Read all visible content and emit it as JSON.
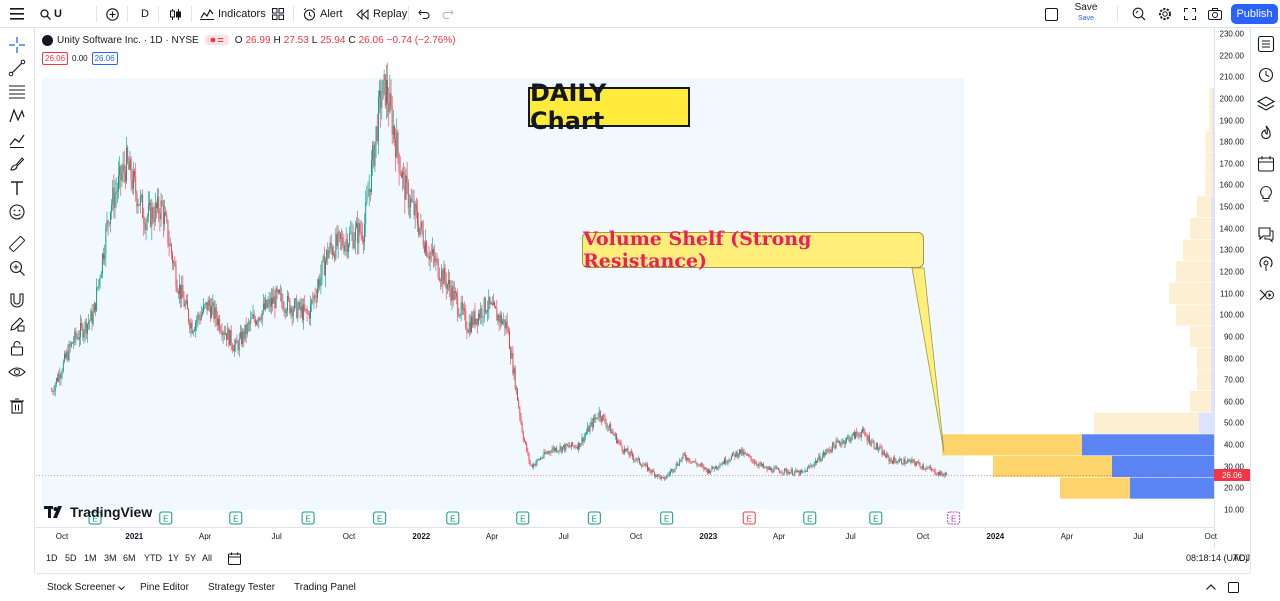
{
  "toolbar": {
    "symbol": "U",
    "interval": "D",
    "indicators": "Indicators",
    "alert": "Alert",
    "replay": "Replay",
    "save": "Save",
    "save_sub": "Save",
    "publish": "Publish"
  },
  "legend": {
    "symbol": "Unity Software Inc. · 1D · NYSE",
    "open_label": "O",
    "open": "26.99",
    "high_label": "H",
    "high": "27.53",
    "low_label": "L",
    "low": "25.94",
    "close_label": "C",
    "close": "26.06",
    "change": "−0.74 (−2.76%)",
    "box_price": "26.06",
    "box_spread": "0.00",
    "box_price2": "26.06"
  },
  "annotations": {
    "daily": "DAILY Chart",
    "shelf": "Volume Shelf (Strong Resistance)"
  },
  "logo_text": "TradingView",
  "last_price": "26.06",
  "range_buttons": [
    "1D",
    "5D",
    "1M",
    "3M",
    "6M",
    "YTD",
    "1Y",
    "5Y",
    "All"
  ],
  "clock": "08:18:14 (UTC)",
  "adj": "ADJ",
  "bottom_tabs": [
    "Stock Screener",
    "Pine Editor",
    "Strategy Tester",
    "Trading Panel"
  ],
  "colors": {
    "up": "#089981",
    "down": "#f23645",
    "accent": "#2962ff",
    "shelf_yellow": "#fdd36b",
    "shelf_blue": "#5b85f5"
  },
  "chart_data": {
    "type": "candlestick",
    "price_ticks": [
      "230.00",
      "220.00",
      "210.00",
      "200.00",
      "190.00",
      "180.00",
      "170.00",
      "160.00",
      "150.00",
      "140.00",
      "130.00",
      "120.00",
      "110.00",
      "100.00",
      "90.00",
      "80.00",
      "70.00",
      "60.00",
      "50.00",
      "40.00",
      "30.00",
      "20.00",
      "10.00"
    ],
    "ylim": [
      5,
      233
    ],
    "time_ticks": [
      {
        "label": "Oct",
        "bold": false
      },
      {
        "label": "2021",
        "bold": true
      },
      {
        "label": "Apr",
        "bold": false
      },
      {
        "label": "Jul",
        "bold": false
      },
      {
        "label": "Oct",
        "bold": false
      },
      {
        "label": "2022",
        "bold": true
      },
      {
        "label": "Apr",
        "bold": false
      },
      {
        "label": "Jul",
        "bold": false
      },
      {
        "label": "Oct",
        "bold": false
      },
      {
        "label": "2023",
        "bold": true
      },
      {
        "label": "Apr",
        "bold": false
      },
      {
        "label": "Jul",
        "bold": false
      },
      {
        "label": "Oct",
        "bold": false
      },
      {
        "label": "2024",
        "bold": true
      },
      {
        "label": "Apr",
        "bold": false
      },
      {
        "label": "Jul",
        "bold": false
      },
      {
        "label": "Oct",
        "bold": false
      }
    ],
    "trend": [
      {
        "t": "2020-09-18",
        "p": 65
      },
      {
        "t": "2020-10-15",
        "p": 88
      },
      {
        "t": "2020-11-10",
        "p": 100
      },
      {
        "t": "2020-12-01",
        "p": 150
      },
      {
        "t": "2020-12-22",
        "p": 170
      },
      {
        "t": "2021-01-15",
        "p": 145
      },
      {
        "t": "2021-02-05",
        "p": 150
      },
      {
        "t": "2021-02-25",
        "p": 115
      },
      {
        "t": "2021-03-15",
        "p": 95
      },
      {
        "t": "2021-04-05",
        "p": 105
      },
      {
        "t": "2021-05-10",
        "p": 85
      },
      {
        "t": "2021-06-01",
        "p": 98
      },
      {
        "t": "2021-07-01",
        "p": 108
      },
      {
        "t": "2021-08-10",
        "p": 100
      },
      {
        "t": "2021-09-05",
        "p": 130
      },
      {
        "t": "2021-10-20",
        "p": 140
      },
      {
        "t": "2021-11-10",
        "p": 200
      },
      {
        "t": "2021-11-17",
        "p": 205
      },
      {
        "t": "2021-12-10",
        "p": 160
      },
      {
        "t": "2022-01-10",
        "p": 130
      },
      {
        "t": "2022-02-10",
        "p": 110
      },
      {
        "t": "2022-03-01",
        "p": 95
      },
      {
        "t": "2022-03-25",
        "p": 105
      },
      {
        "t": "2022-04-20",
        "p": 95
      },
      {
        "t": "2022-05-10",
        "p": 45
      },
      {
        "t": "2022-05-20",
        "p": 30
      },
      {
        "t": "2022-06-15",
        "p": 38
      },
      {
        "t": "2022-07-20",
        "p": 40
      },
      {
        "t": "2022-08-15",
        "p": 55
      },
      {
        "t": "2022-09-15",
        "p": 38
      },
      {
        "t": "2022-10-20",
        "p": 28
      },
      {
        "t": "2022-11-05",
        "p": 24
      },
      {
        "t": "2022-12-01",
        "p": 35
      },
      {
        "t": "2023-01-01",
        "p": 28
      },
      {
        "t": "2023-02-10",
        "p": 37
      },
      {
        "t": "2023-03-15",
        "p": 29
      },
      {
        "t": "2023-05-01",
        "p": 27
      },
      {
        "t": "2023-06-10",
        "p": 40
      },
      {
        "t": "2023-07-15",
        "p": 46
      },
      {
        "t": "2023-08-20",
        "p": 33
      },
      {
        "t": "2023-09-20",
        "p": 32
      },
      {
        "t": "2023-10-20",
        "p": 27
      },
      {
        "t": "2023-10-31",
        "p": 26.06
      }
    ],
    "volume_profile": [
      {
        "price": 20,
        "buy": 0.1,
        "sell": 0.28
      },
      {
        "price": 30,
        "buy": 0.17,
        "sell": 0.34
      },
      {
        "price": 40,
        "buy": 0.2,
        "sell": 0.44
      },
      {
        "price": 50,
        "buy": 0.15,
        "sell": 0.05
      },
      {
        "price": 60,
        "buy": 0.03,
        "sell": 0.01
      },
      {
        "price": 70,
        "buy": 0.02,
        "sell": 0.01
      },
      {
        "price": 80,
        "buy": 0.02,
        "sell": 0.01
      },
      {
        "price": 90,
        "buy": 0.03,
        "sell": 0.01
      },
      {
        "price": 100,
        "buy": 0.05,
        "sell": 0.01
      },
      {
        "price": 110,
        "buy": 0.06,
        "sell": 0.01
      },
      {
        "price": 120,
        "buy": 0.05,
        "sell": 0.01
      },
      {
        "price": 130,
        "buy": 0.04,
        "sell": 0.01
      },
      {
        "price": 140,
        "buy": 0.03,
        "sell": 0.01
      },
      {
        "price": 150,
        "buy": 0.02,
        "sell": 0.01
      },
      {
        "price": 160,
        "buy": 0.01,
        "sell": 0.005
      },
      {
        "price": 170,
        "buy": 0.01,
        "sell": 0.005
      },
      {
        "price": 180,
        "buy": 0.01,
        "sell": 0.005
      },
      {
        "price": 190,
        "buy": 0.005,
        "sell": 0.005
      },
      {
        "price": 200,
        "buy": 0.005,
        "sell": 0.005
      }
    ],
    "earnings_markers": [
      {
        "t": "2020-11-12",
        "type": "past"
      },
      {
        "t": "2021-02-10",
        "type": "past"
      },
      {
        "t": "2021-05-10",
        "type": "past"
      },
      {
        "t": "2021-08-10",
        "type": "past"
      },
      {
        "t": "2021-11-09",
        "type": "past"
      },
      {
        "t": "2022-02-10",
        "type": "past"
      },
      {
        "t": "2022-05-10",
        "type": "past"
      },
      {
        "t": "2022-08-09",
        "type": "past"
      },
      {
        "t": "2022-11-09",
        "type": "past"
      },
      {
        "t": "2023-02-22",
        "type": "miss"
      },
      {
        "t": "2023-05-10",
        "type": "past"
      },
      {
        "t": "2023-08-02",
        "type": "past"
      },
      {
        "t": "2023-11-09",
        "type": "upcoming"
      }
    ],
    "earnings_label": "E"
  }
}
